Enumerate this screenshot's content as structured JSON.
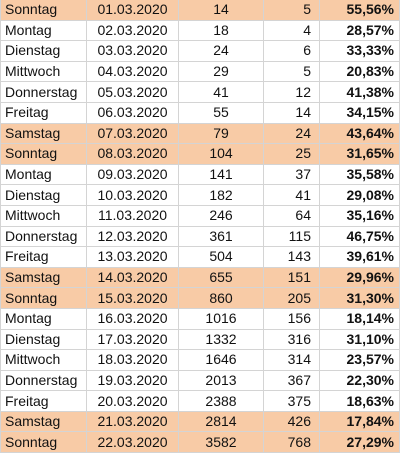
{
  "rows": [
    {
      "day": "Sonntag",
      "date": "01.03.2020",
      "total": "14",
      "new": "5",
      "pct": "55,56%",
      "weekend": true
    },
    {
      "day": "Montag",
      "date": "02.03.2020",
      "total": "18",
      "new": "4",
      "pct": "28,57%",
      "weekend": false
    },
    {
      "day": "Dienstag",
      "date": "03.03.2020",
      "total": "24",
      "new": "6",
      "pct": "33,33%",
      "weekend": false
    },
    {
      "day": "Mittwoch",
      "date": "04.03.2020",
      "total": "29",
      "new": "5",
      "pct": "20,83%",
      "weekend": false
    },
    {
      "day": "Donnerstag",
      "date": "05.03.2020",
      "total": "41",
      "new": "12",
      "pct": "41,38%",
      "weekend": false
    },
    {
      "day": "Freitag",
      "date": "06.03.2020",
      "total": "55",
      "new": "14",
      "pct": "34,15%",
      "weekend": false
    },
    {
      "day": "Samstag",
      "date": "07.03.2020",
      "total": "79",
      "new": "24",
      "pct": "43,64%",
      "weekend": true
    },
    {
      "day": "Sonntag",
      "date": "08.03.2020",
      "total": "104",
      "new": "25",
      "pct": "31,65%",
      "weekend": true
    },
    {
      "day": "Montag",
      "date": "09.03.2020",
      "total": "141",
      "new": "37",
      "pct": "35,58%",
      "weekend": false
    },
    {
      "day": "Dienstag",
      "date": "10.03.2020",
      "total": "182",
      "new": "41",
      "pct": "29,08%",
      "weekend": false
    },
    {
      "day": "Mittwoch",
      "date": "11.03.2020",
      "total": "246",
      "new": "64",
      "pct": "35,16%",
      "weekend": false
    },
    {
      "day": "Donnerstag",
      "date": "12.03.2020",
      "total": "361",
      "new": "115",
      "pct": "46,75%",
      "weekend": false
    },
    {
      "day": "Freitag",
      "date": "13.03.2020",
      "total": "504",
      "new": "143",
      "pct": "39,61%",
      "weekend": false
    },
    {
      "day": "Samstag",
      "date": "14.03.2020",
      "total": "655",
      "new": "151",
      "pct": "29,96%",
      "weekend": true
    },
    {
      "day": "Sonntag",
      "date": "15.03.2020",
      "total": "860",
      "new": "205",
      "pct": "31,30%",
      "weekend": true
    },
    {
      "day": "Montag",
      "date": "16.03.2020",
      "total": "1016",
      "new": "156",
      "pct": "18,14%",
      "weekend": false
    },
    {
      "day": "Dienstag",
      "date": "17.03.2020",
      "total": "1332",
      "new": "316",
      "pct": "31,10%",
      "weekend": false
    },
    {
      "day": "Mittwoch",
      "date": "18.03.2020",
      "total": "1646",
      "new": "314",
      "pct": "23,57%",
      "weekend": false
    },
    {
      "day": "Donnerstag",
      "date": "19.03.2020",
      "total": "2013",
      "new": "367",
      "pct": "22,30%",
      "weekend": false
    },
    {
      "day": "Freitag",
      "date": "20.03.2020",
      "total": "2388",
      "new": "375",
      "pct": "18,63%",
      "weekend": false
    },
    {
      "day": "Samstag",
      "date": "21.03.2020",
      "total": "2814",
      "new": "426",
      "pct": "17,84%",
      "weekend": true
    },
    {
      "day": "Sonntag",
      "date": "22.03.2020",
      "total": "3582",
      "new": "768",
      "pct": "27,29%",
      "weekend": true
    }
  ],
  "colors": {
    "weekend_fill": "#f8cba6",
    "gridline": "#d4d4d4",
    "weekday_fill": "#ffffff"
  }
}
